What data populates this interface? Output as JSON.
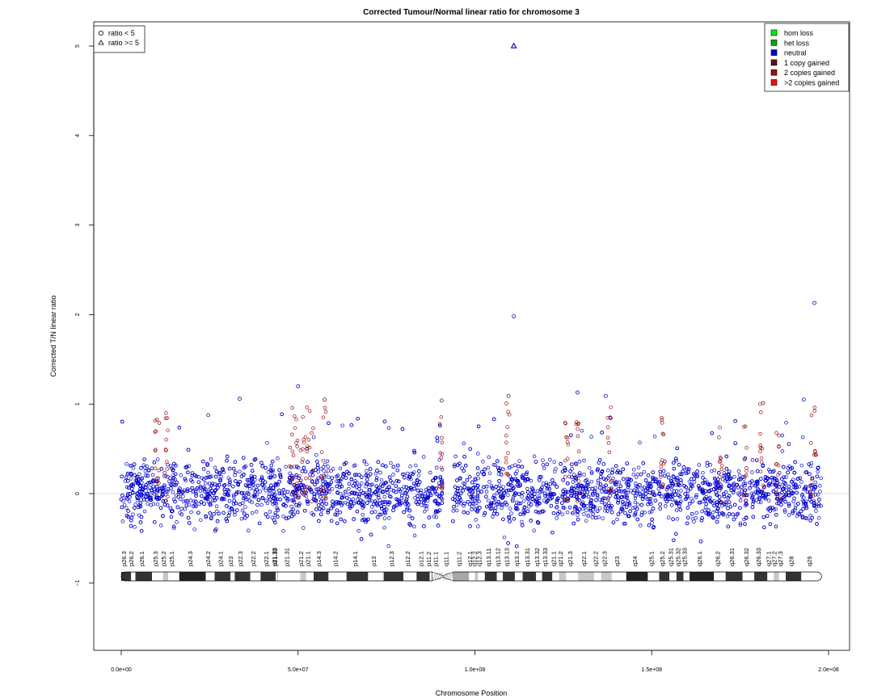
{
  "chart_data": {
    "type": "scatter",
    "title": "Corrected Tumour/Normal linear ratio for chromosome  3",
    "xlabel": "Chromosome Position",
    "ylabel": "Corrected T/N linear ratio",
    "xlim": [
      0,
      200000000
    ],
    "ylim": [
      -1.8,
      5.3
    ],
    "xticks": [
      {
        "value": 0,
        "label": "0.0e+00"
      },
      {
        "value": 50000000,
        "label": "5.0e+07"
      },
      {
        "value": 100000000,
        "label": "1.0e+08"
      },
      {
        "value": 150000000,
        "label": "1.5e+08"
      },
      {
        "value": 200000000,
        "label": "2.0e+08"
      }
    ],
    "yticks": [
      {
        "value": -1,
        "label": "−1"
      },
      {
        "value": 0,
        "label": "0"
      },
      {
        "value": 1,
        "label": "1"
      },
      {
        "value": 2,
        "label": "2"
      },
      {
        "value": 3,
        "label": "3"
      },
      {
        "value": 4,
        "label": "4"
      },
      {
        "value": 5,
        "label": "5"
      }
    ],
    "reference_line": {
      "y": 0,
      "style": "dotted"
    },
    "x_range_observed": [
      0,
      198000000
    ],
    "centromere_gap": [
      90800000,
      93600000
    ],
    "neutral_band": {
      "low": -0.45,
      "high": 0.5,
      "color": "#0000cc"
    },
    "outliers": [
      {
        "x": 111000000,
        "y": 5.0,
        "marker": "triangle",
        "series": "neutral"
      },
      {
        "x": 111000000,
        "y": 1.98,
        "marker": "circle",
        "series": "neutral"
      },
      {
        "x": 196000000,
        "y": 2.13,
        "marker": "circle",
        "series": "neutral"
      },
      {
        "x": 50000000,
        "y": 1.2,
        "marker": "circle",
        "series": "neutral"
      },
      {
        "x": 33500000,
        "y": 1.06,
        "marker": "circle",
        "series": "neutral"
      },
      {
        "x": 129000000,
        "y": 1.13,
        "marker": "circle",
        "series": "neutral"
      },
      {
        "x": 137000000,
        "y": 1.09,
        "marker": "circle",
        "series": "neutral"
      },
      {
        "x": 193000000,
        "y": 1.05,
        "marker": "circle",
        "series": "neutral"
      },
      {
        "x": 57500000,
        "y": 1.05,
        "marker": "circle",
        "series": "1 copy gained"
      },
      {
        "x": 90600000,
        "y": 1.04,
        "marker": "circle",
        "series": "1 copy gained"
      },
      {
        "x": 109500000,
        "y": 1.09,
        "marker": "circle",
        "series": "1 copy gained"
      },
      {
        "x": 181500000,
        "y": 1.01,
        "marker": "circle",
        "series": "1 copy gained"
      }
    ],
    "gained_regions": [
      {
        "start": 9500000,
        "end": 11000000,
        "max": 0.83
      },
      {
        "start": 12500000,
        "end": 13200000,
        "max": 0.95
      },
      {
        "start": 47500000,
        "end": 54500000,
        "max": 0.97
      },
      {
        "start": 56500000,
        "end": 58000000,
        "max": 1.05
      },
      {
        "start": 90000000,
        "end": 90800000,
        "max": 1.04
      },
      {
        "start": 108800000,
        "end": 109800000,
        "max": 1.09
      },
      {
        "start": 125500000,
        "end": 126500000,
        "max": 0.82
      },
      {
        "start": 128500000,
        "end": 129800000,
        "max": 0.8
      },
      {
        "start": 137500000,
        "end": 138500000,
        "max": 1.01
      },
      {
        "start": 152500000,
        "end": 153500000,
        "max": 0.87
      },
      {
        "start": 169000000,
        "end": 170000000,
        "max": 0.95
      },
      {
        "start": 176000000,
        "end": 177000000,
        "max": 0.78
      },
      {
        "start": 180500000,
        "end": 182000000,
        "max": 1.01
      },
      {
        "start": 185000000,
        "end": 186000000,
        "max": 0.85
      },
      {
        "start": 194500000,
        "end": 196500000,
        "max": 1.05
      }
    ],
    "legend_left": [
      {
        "marker": "circle",
        "label": "ratio < 5"
      },
      {
        "marker": "triangle",
        "label": "ratio >= 5"
      }
    ],
    "legend_right": [
      {
        "label": "hom loss",
        "color": "#00ee00"
      },
      {
        "label": "het loss",
        "color": "#00aa00"
      },
      {
        "label": "neutral",
        "color": "#0000cc"
      },
      {
        "label": "1 copy gained",
        "color": "#661111"
      },
      {
        "label": "2 copies gained",
        "color": "#991111"
      },
      {
        "label": ">2 copies gained",
        "color": "#ee1111"
      }
    ],
    "cytobands": [
      {
        "name": "p26.3",
        "start": 0,
        "end": 2800000,
        "stain": "gpos50"
      },
      {
        "name": "p26.2",
        "start": 2800000,
        "end": 4000000,
        "stain": "gneg"
      },
      {
        "name": "p26.1",
        "start": 4000000,
        "end": 8700000,
        "stain": "gpos50"
      },
      {
        "name": "p25.3",
        "start": 8700000,
        "end": 11800000,
        "stain": "gneg"
      },
      {
        "name": "p25.2",
        "start": 11800000,
        "end": 13300000,
        "stain": "gpos25"
      },
      {
        "name": "p25.1",
        "start": 13300000,
        "end": 16400000,
        "stain": "gneg"
      },
      {
        "name": "p24.3",
        "start": 16400000,
        "end": 23900000,
        "stain": "gpos100"
      },
      {
        "name": "p24.2",
        "start": 23900000,
        "end": 26400000,
        "stain": "gneg"
      },
      {
        "name": "p24.1",
        "start": 26400000,
        "end": 30900000,
        "stain": "gpos75"
      },
      {
        "name": "p23",
        "start": 30900000,
        "end": 32100000,
        "stain": "gneg"
      },
      {
        "name": "p22.3",
        "start": 32100000,
        "end": 36500000,
        "stain": "gpos50"
      },
      {
        "name": "p22.2",
        "start": 36500000,
        "end": 39400000,
        "stain": "gneg"
      },
      {
        "name": "p22.1",
        "start": 39400000,
        "end": 43700000,
        "stain": "gpos75"
      },
      {
        "name": "p21.33",
        "start": 43700000,
        "end": 44100000,
        "stain": "gneg"
      },
      {
        "name": "p21.32",
        "start": 44100000,
        "end": 44200000,
        "stain": "gpos50"
      },
      {
        "name": "p21.31",
        "start": 44200000,
        "end": 50600000,
        "stain": "gneg"
      },
      {
        "name": "p21.2",
        "start": 50600000,
        "end": 52300000,
        "stain": "gpos25"
      },
      {
        "name": "p21.1",
        "start": 52300000,
        "end": 54400000,
        "stain": "gneg"
      },
      {
        "name": "p14.3",
        "start": 54400000,
        "end": 58600000,
        "stain": "gpos50"
      },
      {
        "name": "p14.2",
        "start": 58600000,
        "end": 63700000,
        "stain": "gneg"
      },
      {
        "name": "p14.1",
        "start": 63700000,
        "end": 69800000,
        "stain": "gpos50"
      },
      {
        "name": "p13",
        "start": 69800000,
        "end": 74200000,
        "stain": "gneg"
      },
      {
        "name": "p12.3",
        "start": 74200000,
        "end": 79800000,
        "stain": "gpos75"
      },
      {
        "name": "p12.2",
        "start": 79800000,
        "end": 83500000,
        "stain": "gneg"
      },
      {
        "name": "p12.1",
        "start": 83500000,
        "end": 87200000,
        "stain": "gpos75"
      },
      {
        "name": "p11.2",
        "start": 87200000,
        "end": 87900000,
        "stain": "gneg"
      },
      {
        "name": "p11.1",
        "start": 87900000,
        "end": 91000000,
        "stain": "acen"
      },
      {
        "name": "q11.1",
        "start": 91000000,
        "end": 93900000,
        "stain": "acen"
      },
      {
        "name": "q11.2",
        "start": 93900000,
        "end": 98300000,
        "stain": "gvar"
      },
      {
        "name": "q12.1",
        "start": 98300000,
        "end": 100000000,
        "stain": "gneg"
      },
      {
        "name": "q12.2",
        "start": 100000000,
        "end": 100900000,
        "stain": "gpos25"
      },
      {
        "name": "q12.3",
        "start": 100900000,
        "end": 102800000,
        "stain": "gneg"
      },
      {
        "name": "q13.11",
        "start": 102800000,
        "end": 106200000,
        "stain": "gpos75"
      },
      {
        "name": "q13.12",
        "start": 106200000,
        "end": 107900000,
        "stain": "gneg"
      },
      {
        "name": "q13.13",
        "start": 107900000,
        "end": 111300000,
        "stain": "gpos50"
      },
      {
        "name": "q13.2",
        "start": 111300000,
        "end": 113500000,
        "stain": "gneg"
      },
      {
        "name": "q13.31",
        "start": 113500000,
        "end": 117300000,
        "stain": "gpos75"
      },
      {
        "name": "q13.32",
        "start": 117300000,
        "end": 119000000,
        "stain": "gneg"
      },
      {
        "name": "q13.33",
        "start": 119000000,
        "end": 121900000,
        "stain": "gpos75"
      },
      {
        "name": "q21.1",
        "start": 121900000,
        "end": 123800000,
        "stain": "gneg"
      },
      {
        "name": "q21.2",
        "start": 123800000,
        "end": 125800000,
        "stain": "gpos25"
      },
      {
        "name": "q21.3",
        "start": 125800000,
        "end": 129200000,
        "stain": "gneg"
      },
      {
        "name": "q22.1",
        "start": 129200000,
        "end": 133700000,
        "stain": "gpos25"
      },
      {
        "name": "q22.2",
        "start": 133700000,
        "end": 135700000,
        "stain": "gneg"
      },
      {
        "name": "q22.3",
        "start": 135700000,
        "end": 138700000,
        "stain": "gpos25"
      },
      {
        "name": "q23",
        "start": 138700000,
        "end": 142800000,
        "stain": "gneg"
      },
      {
        "name": "q24",
        "start": 142800000,
        "end": 148900000,
        "stain": "gpos100"
      },
      {
        "name": "q25.1",
        "start": 148900000,
        "end": 152100000,
        "stain": "gneg"
      },
      {
        "name": "q25.2",
        "start": 152100000,
        "end": 155000000,
        "stain": "gpos50"
      },
      {
        "name": "q25.31",
        "start": 155000000,
        "end": 157000000,
        "stain": "gneg"
      },
      {
        "name": "q25.32",
        "start": 157000000,
        "end": 159000000,
        "stain": "gpos50"
      },
      {
        "name": "q25.33",
        "start": 159000000,
        "end": 160700000,
        "stain": "gneg"
      },
      {
        "name": "q26.1",
        "start": 160700000,
        "end": 167600000,
        "stain": "gpos100"
      },
      {
        "name": "q26.2",
        "start": 167600000,
        "end": 170900000,
        "stain": "gneg"
      },
      {
        "name": "q26.31",
        "start": 170900000,
        "end": 175700000,
        "stain": "gpos75"
      },
      {
        "name": "q26.32",
        "start": 175700000,
        "end": 179000000,
        "stain": "gneg"
      },
      {
        "name": "q26.33",
        "start": 179000000,
        "end": 182700000,
        "stain": "gpos75"
      },
      {
        "name": "q27.1",
        "start": 182700000,
        "end": 184500000,
        "stain": "gneg"
      },
      {
        "name": "q27.2",
        "start": 184500000,
        "end": 186000000,
        "stain": "gpos25"
      },
      {
        "name": "q27.3",
        "start": 186000000,
        "end": 187900000,
        "stain": "gneg"
      },
      {
        "name": "q28",
        "start": 187900000,
        "end": 192300000,
        "stain": "gpos75"
      },
      {
        "name": "q29",
        "start": 192300000,
        "end": 198022430,
        "stain": "gneg"
      }
    ]
  }
}
